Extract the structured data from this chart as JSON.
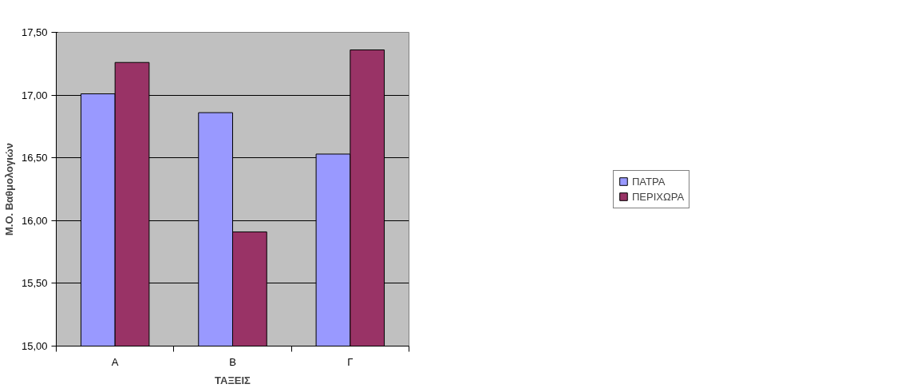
{
  "chart_data": {
    "type": "bar",
    "xlabel": "ΤΑΞΕΙΣ",
    "ylabel": "Μ.Ο. Βαθμολογιών",
    "categories": [
      "Α",
      "Β",
      "Γ"
    ],
    "series": [
      {
        "name": "ΠΑΤΡΑ",
        "color": "#9999ff",
        "values": [
          17.01,
          16.86,
          16.53
        ]
      },
      {
        "name": "ΠΕΡΙΧΩΡΑ",
        "color": "#993366",
        "values": [
          17.26,
          15.91,
          17.36
        ]
      }
    ],
    "ylim": [
      15,
      17.5
    ],
    "yticks": [
      {
        "value": 15,
        "label": "15,00"
      },
      {
        "value": 15.5,
        "label": "15,50"
      },
      {
        "value": 16,
        "label": "16,00"
      },
      {
        "value": 16.5,
        "label": "16,50"
      },
      {
        "value": 17,
        "label": "17,00"
      },
      {
        "value": 17.5,
        "label": "17,50"
      }
    ],
    "grid": "y",
    "legend": "right"
  }
}
